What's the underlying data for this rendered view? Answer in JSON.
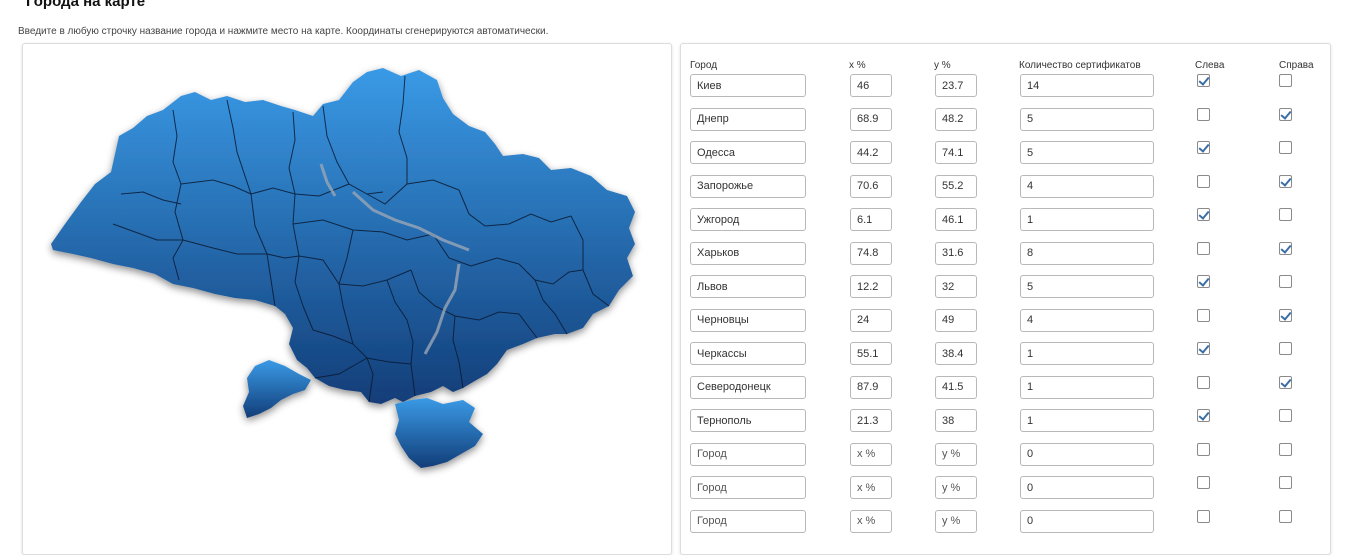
{
  "page": {
    "title": "Города на карте",
    "hint": "Введите в любую строчку название города и нажмите место на карте. Координаты сгенерируются автоматически."
  },
  "map": {
    "alt": "Карта Украины",
    "gradient_top": "#3a9ae6",
    "gradient_bottom": "#123d78"
  },
  "table": {
    "headers": {
      "city": "Город",
      "x": "x %",
      "y": "y %",
      "count": "Количество сертификатов",
      "left": "Слева",
      "right": "Справа"
    },
    "placeholders": {
      "city": "Город",
      "x": "x %",
      "y": "y %"
    },
    "check_color": "#3a6ea5",
    "rows": [
      {
        "city": "Киев",
        "x": "46",
        "y": "23.7",
        "count": "14",
        "left": true,
        "right": false
      },
      {
        "city": "Днепр",
        "x": "68.9",
        "y": "48.2",
        "count": "5",
        "left": false,
        "right": true
      },
      {
        "city": "Одесса",
        "x": "44.2",
        "y": "74.1",
        "count": "5",
        "left": true,
        "right": false
      },
      {
        "city": "Запорожье",
        "x": "70.6",
        "y": "55.2",
        "count": "4",
        "left": false,
        "right": true
      },
      {
        "city": "Ужгород",
        "x": "6.1",
        "y": "46.1",
        "count": "1",
        "left": true,
        "right": false
      },
      {
        "city": "Харьков",
        "x": "74.8",
        "y": "31.6",
        "count": "8",
        "left": false,
        "right": true
      },
      {
        "city": "Львов",
        "x": "12.2",
        "y": "32",
        "count": "5",
        "left": true,
        "right": false
      },
      {
        "city": "Черновцы",
        "x": "24",
        "y": "49",
        "count": "4",
        "left": false,
        "right": true
      },
      {
        "city": "Черкассы",
        "x": "55.1",
        "y": "38.4",
        "count": "1",
        "left": true,
        "right": false
      },
      {
        "city": "Северодонецк",
        "x": "87.9",
        "y": "41.5",
        "count": "1",
        "left": false,
        "right": true
      },
      {
        "city": "Тернополь",
        "x": "21.3",
        "y": "38",
        "count": "1",
        "left": true,
        "right": false
      },
      {
        "city": "",
        "x": "",
        "y": "",
        "count": "0",
        "left": false,
        "right": false
      },
      {
        "city": "",
        "x": "",
        "y": "",
        "count": "0",
        "left": false,
        "right": false
      },
      {
        "city": "",
        "x": "",
        "y": "",
        "count": "0",
        "left": false,
        "right": false
      }
    ]
  }
}
